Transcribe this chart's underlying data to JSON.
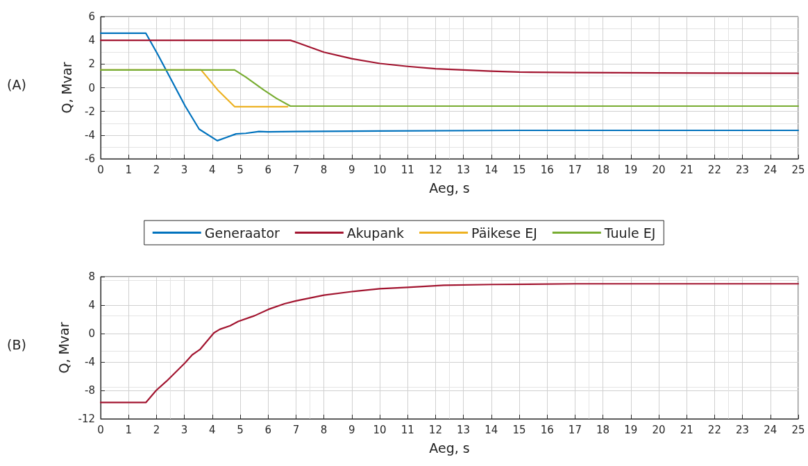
{
  "chart_data": [
    {
      "type": "line",
      "xlabel": "Aeg, s",
      "ylabel": "Q, Mvar",
      "annotations": [
        "(A)"
      ],
      "xlim": [
        0,
        25
      ],
      "xticks": [
        0,
        1,
        2,
        3,
        4,
        5,
        6,
        7,
        8,
        9,
        10,
        11,
        12,
        13,
        14,
        15,
        16,
        17,
        18,
        19,
        20,
        21,
        22,
        23,
        24,
        25
      ],
      "ylim": [
        -6,
        6
      ],
      "yticks": [
        -6,
        -4,
        -2,
        0,
        2,
        4,
        6
      ],
      "grid": true,
      "legend": "bottom",
      "marker": "none",
      "line_style": "solid",
      "series": [
        {
          "name": "Generaator",
          "color": "#0072bd",
          "x": [
            0,
            1.62,
            2.04,
            2.5,
            3.03,
            3.53,
            4.18,
            4.5,
            4.85,
            5.2,
            5.67,
            6,
            7,
            10,
            15,
            25
          ],
          "values": [
            4.6,
            4.6,
            2.84,
            0.8,
            -1.55,
            -3.5,
            -4.47,
            -4.2,
            -3.9,
            -3.85,
            -3.7,
            -3.72,
            -3.7,
            -3.65,
            -3.6,
            -3.6
          ]
        },
        {
          "name": "Akupank",
          "color": "#a2142f",
          "x": [
            0,
            6.8,
            7,
            8,
            9,
            10,
            11,
            12,
            13,
            14,
            15,
            17,
            20,
            25
          ],
          "values": [
            4.0,
            4.0,
            3.85,
            3.0,
            2.45,
            2.05,
            1.8,
            1.6,
            1.5,
            1.4,
            1.32,
            1.28,
            1.25,
            1.22
          ]
        },
        {
          "name": "Päikese EJ",
          "color": "#edb120",
          "x": [
            0,
            3.6,
            4.2,
            4.8,
            6.7
          ],
          "values": [
            1.5,
            1.5,
            -0.2,
            -1.6,
            -1.6
          ]
        },
        {
          "name": "Tuule EJ",
          "color": "#77ac30",
          "x": [
            0,
            4.8,
            5.2,
            5.85,
            6.3,
            6.8,
            25
          ],
          "values": [
            1.5,
            1.5,
            0.9,
            -0.2,
            -0.9,
            -1.55,
            -1.55
          ]
        }
      ]
    },
    {
      "type": "line",
      "xlabel": "Aeg, s",
      "ylabel": "Q, Mvar",
      "annotations": [
        "(B)"
      ],
      "xlim": [
        0,
        25
      ],
      "xticks": [
        0,
        1,
        2,
        3,
        4,
        5,
        6,
        7,
        8,
        9,
        10,
        11,
        12,
        13,
        14,
        15,
        16,
        17,
        18,
        19,
        20,
        21,
        22,
        23,
        24,
        25
      ],
      "ylim": [
        -12,
        8
      ],
      "yticks": [
        -12,
        -8,
        -4,
        0,
        4,
        8
      ],
      "grid": true,
      "marker": "none",
      "line_style": "solid",
      "series": [
        {
          "color": "#a2142f",
          "x": [
            0,
            1.62,
            1.99,
            2.36,
            3.03,
            3.28,
            3.57,
            4.06,
            4.27,
            4.64,
            4.93,
            5.51,
            6.01,
            6.59,
            7,
            8,
            9,
            10,
            11,
            12.3,
            14,
            17,
            25
          ],
          "values": [
            -9.7,
            -9.7,
            -8.0,
            -6.7,
            -4.1,
            -3.0,
            -2.2,
            0.1,
            0.6,
            1.1,
            1.7,
            2.5,
            3.4,
            4.2,
            4.6,
            5.4,
            5.9,
            6.3,
            6.5,
            6.8,
            6.9,
            7.0,
            7.0
          ]
        }
      ]
    }
  ]
}
